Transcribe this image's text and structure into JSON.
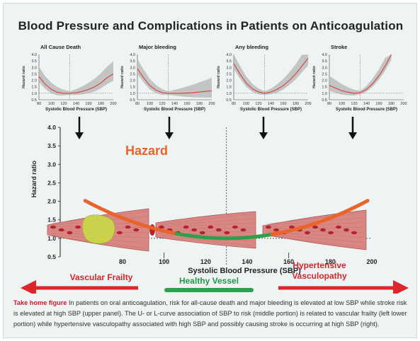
{
  "title": "Blood Pressure and Complications in Patients on Anticoagulation",
  "panels": [
    {
      "label": "All Cause Death",
      "series": [
        [
          80,
          2.3
        ],
        [
          90,
          1.7
        ],
        [
          100,
          1.3
        ],
        [
          110,
          1.08
        ],
        [
          120,
          1.0
        ],
        [
          130,
          1.0
        ],
        [
          140,
          1.05
        ],
        [
          150,
          1.15
        ],
        [
          160,
          1.3
        ],
        [
          170,
          1.5
        ],
        [
          180,
          1.8
        ],
        [
          190,
          2.2
        ],
        [
          200,
          2.5
        ]
      ]
    },
    {
      "label": "Major bleeding",
      "series": [
        [
          80,
          2.9
        ],
        [
          90,
          2.2
        ],
        [
          100,
          1.6
        ],
        [
          110,
          1.25
        ],
        [
          120,
          1.05
        ],
        [
          130,
          1.0
        ],
        [
          140,
          1.0
        ],
        [
          150,
          1.0
        ],
        [
          160,
          1.02
        ],
        [
          170,
          1.05
        ],
        [
          180,
          1.1
        ],
        [
          190,
          1.15
        ],
        [
          200,
          1.2
        ]
      ]
    },
    {
      "label": "Any bleeding",
      "series": [
        [
          80,
          3.3
        ],
        [
          90,
          2.5
        ],
        [
          100,
          1.8
        ],
        [
          110,
          1.35
        ],
        [
          120,
          1.1
        ],
        [
          130,
          1.0
        ],
        [
          140,
          1.1
        ],
        [
          150,
          1.3
        ],
        [
          160,
          1.6
        ],
        [
          170,
          2.0
        ],
        [
          180,
          2.5
        ],
        [
          190,
          3.1
        ],
        [
          200,
          3.7
        ]
      ]
    },
    {
      "label": "Stroke",
      "series": [
        [
          80,
          1.6
        ],
        [
          90,
          1.4
        ],
        [
          100,
          1.2
        ],
        [
          110,
          1.08
        ],
        [
          120,
          1.0
        ],
        [
          130,
          1.05
        ],
        [
          140,
          1.3
        ],
        [
          150,
          1.75
        ],
        [
          160,
          2.35
        ],
        [
          170,
          3.1
        ],
        [
          180,
          4.0
        ]
      ]
    }
  ],
  "panel_axes": {
    "ylabel": "Hazard ratio",
    "xlabel": "Systolic Blood Pressure (SBP)",
    "yticks": [
      "4.0",
      "3.5",
      "3.0",
      "2.5",
      "2.0",
      "1.5",
      "1.0",
      "0.5"
    ],
    "xticks": [
      "80",
      "90",
      "100",
      "120",
      "130",
      "140",
      "150",
      "160",
      "170",
      "180",
      "190",
      "200"
    ]
  },
  "main": {
    "hazard_label": "Hazard",
    "ylabel": "Hazard ratio",
    "xlabel": "Systolic Blood Pressure (SBP)",
    "yticks": [
      "4.0",
      "3.5",
      "3.0",
      "2.5",
      "2.0",
      "1.5",
      "1.0",
      "0.5"
    ],
    "xticks": [
      "80",
      "100",
      "120",
      "140",
      "160",
      "180",
      "200"
    ]
  },
  "bottom": {
    "left": "Vascular Frailty",
    "center": "Healthy Vessel",
    "right_line1": "Hypertensive",
    "right_line2": "Vasculopathy"
  },
  "caption": {
    "lead": "Take home figure",
    "text": " In patients on oral anticoagulation, risk for all-cause death and major bleeding is elevated at low SBP while stroke risk is elevated at high SBP (upper panel). The U- or L-curve association of SBP to risk (middle portion) is related to vascular frailty (left lower portion) while hypertensive vasculopathy associated with high SBP and possibly causing stroke is occurring at high SBP (right)."
  },
  "colors": {
    "curve_orange": "#e8642a",
    "curve_green": "#2aa14a",
    "arrow_red": "#e0252b",
    "text_red": "#d8232a",
    "text_green": "#1f9a47",
    "panel_red": "#e03030",
    "vessel": "#d88784",
    "plaque": "#c9d24a"
  }
}
